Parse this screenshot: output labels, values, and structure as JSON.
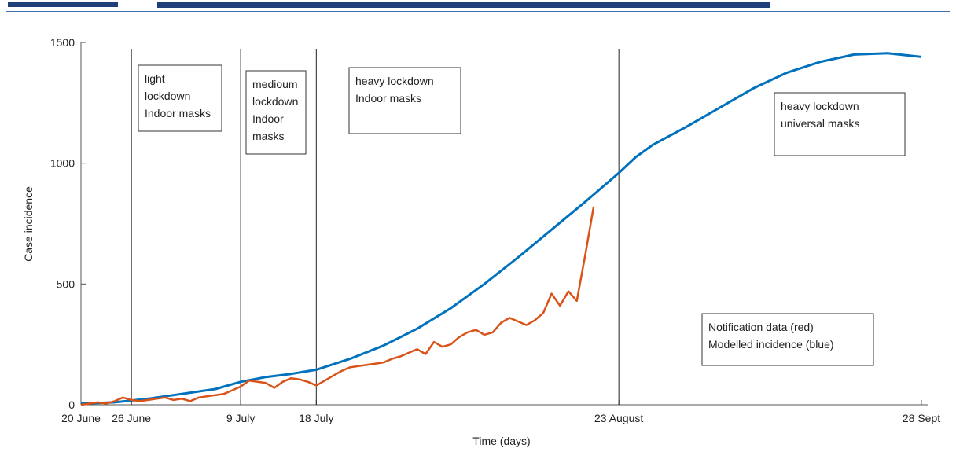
{
  "chart_data": {
    "type": "line",
    "title": "",
    "xlabel": "Time (days)",
    "ylabel": "Case incidence",
    "ylim": [
      0,
      1500
    ],
    "yticks": [
      0,
      500,
      1000,
      1500
    ],
    "x_range": [
      "20 June",
      "28 Sept"
    ],
    "xticks": [
      "20 June",
      "26 June",
      "9 July",
      "18 July",
      "23 August",
      "28 Sept"
    ],
    "xtick_days": [
      0,
      6,
      19,
      28,
      64,
      100
    ],
    "vertical_markers": [
      "26 June",
      "9 July",
      "18 July",
      "23 August"
    ],
    "phase_annotations": [
      {
        "lines": [
          "light",
          "lockdown",
          "Indoor masks"
        ]
      },
      {
        "lines": [
          "medioum",
          "lockdown",
          "Indoor",
          "masks"
        ]
      },
      {
        "lines": [
          "heavy lockdown",
          "Indoor masks"
        ]
      },
      {
        "lines": [
          "heavy lockdown",
          "universal masks"
        ]
      }
    ],
    "legend_note": {
      "lines": [
        "Notification data (red)",
        "Modelled incidence (blue)"
      ]
    },
    "series": [
      {
        "key": "modelled",
        "color": "#0072BD",
        "x_days": [
          0,
          4,
          8,
          12,
          16,
          19,
          22,
          25,
          28,
          32,
          36,
          40,
          44,
          48,
          52,
          56,
          60,
          64,
          66,
          68,
          72,
          76,
          80,
          84,
          88,
          92,
          96,
          100
        ],
        "values": [
          5,
          10,
          25,
          45,
          65,
          95,
          115,
          128,
          145,
          190,
          245,
          315,
          400,
          500,
          610,
          725,
          840,
          960,
          1025,
          1075,
          1150,
          1230,
          1310,
          1375,
          1420,
          1450,
          1455,
          1440
        ]
      },
      {
        "key": "notification",
        "color": "#D95319",
        "x_days": [
          0,
          1,
          2,
          3,
          4,
          5,
          6,
          7,
          8,
          9,
          10,
          11,
          12,
          13,
          14,
          15,
          16,
          17,
          18,
          19,
          20,
          21,
          22,
          23,
          24,
          25,
          26,
          27,
          28,
          29,
          30,
          31,
          32,
          33,
          34,
          35,
          36,
          37,
          38,
          39,
          40,
          41,
          42,
          43,
          44,
          45,
          46,
          47,
          48,
          49,
          50,
          51,
          52,
          53,
          54,
          55,
          56,
          57,
          58,
          59,
          60,
          61
        ],
        "values": [
          0,
          5,
          10,
          5,
          15,
          30,
          20,
          15,
          20,
          25,
          30,
          20,
          25,
          15,
          30,
          35,
          40,
          45,
          60,
          75,
          100,
          95,
          90,
          70,
          95,
          110,
          105,
          95,
          80,
          100,
          120,
          140,
          155,
          160,
          165,
          170,
          175,
          190,
          200,
          215,
          230,
          210,
          260,
          240,
          250,
          280,
          300,
          310,
          290,
          300,
          340,
          360,
          345,
          330,
          350,
          380,
          460,
          410,
          470,
          430,
          620,
          820
        ]
      }
    ]
  }
}
